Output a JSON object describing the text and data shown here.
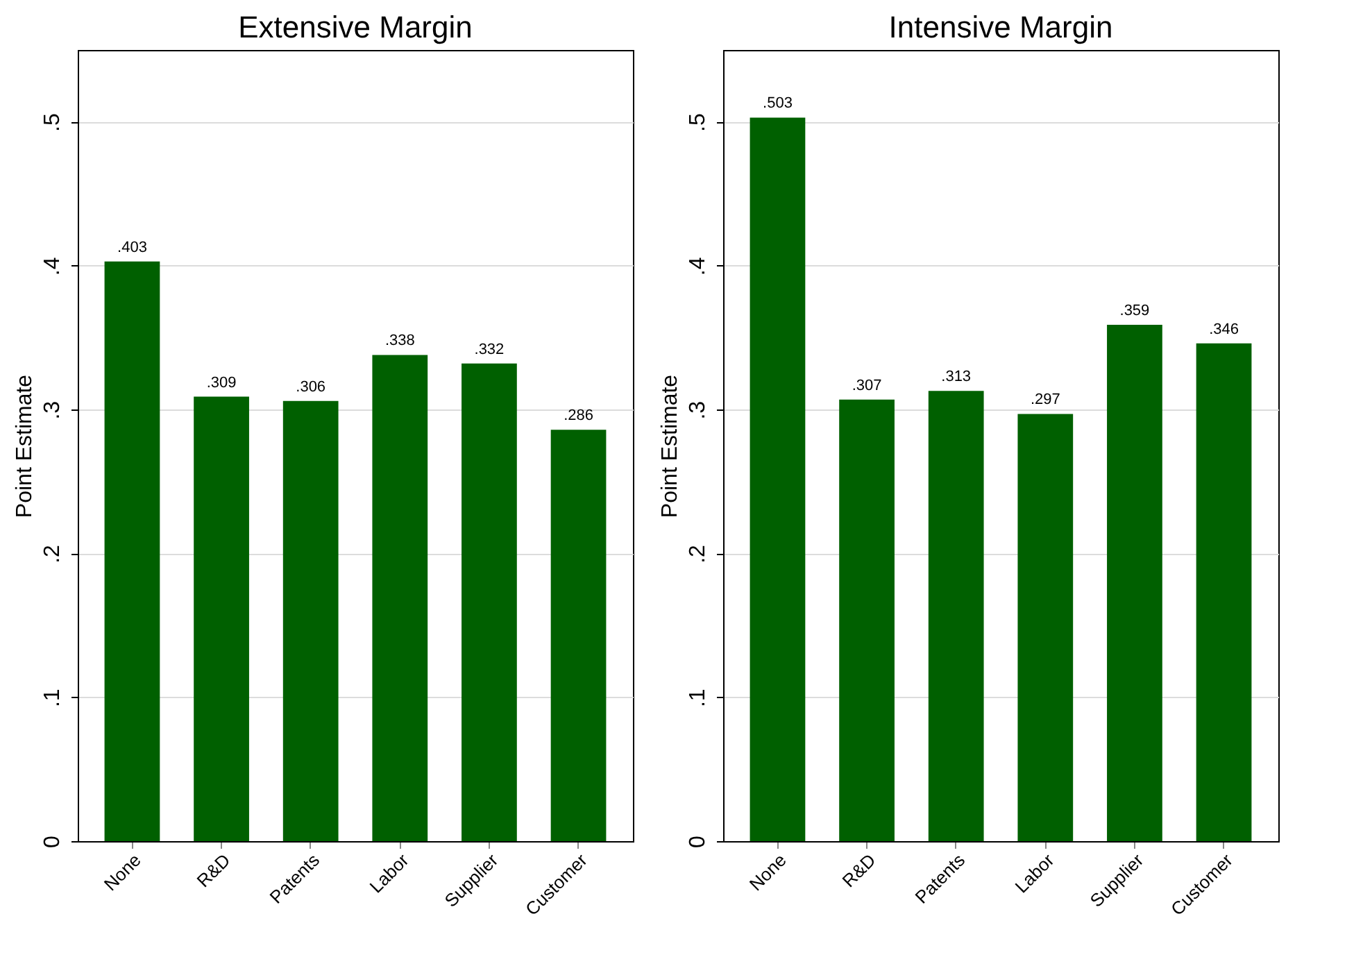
{
  "chart_data": [
    {
      "type": "bar",
      "title": "Extensive Margin",
      "ylabel": "Point Estimate",
      "categories": [
        "None",
        "R&D",
        "Patents",
        "Labor",
        "Supplier",
        "Customer"
      ],
      "values": [
        0.403,
        0.309,
        0.306,
        0.338,
        0.332,
        0.286
      ],
      "value_labels": [
        ".403",
        ".309",
        ".306",
        ".338",
        ".332",
        ".286"
      ],
      "color": "#006000",
      "ylim": [
        0,
        0.55
      ],
      "yticks": [
        0,
        {
          "value": 0.1,
          "label": ".1"
        },
        {
          "value": 0.2,
          "label": ".2"
        },
        {
          "value": 0.3,
          "label": ".3"
        },
        {
          "value": 0.4,
          "label": ".4"
        },
        {
          "value": 0.5,
          "label": ".5"
        }
      ],
      "grid": "y"
    },
    {
      "type": "bar",
      "title": "Intensive Margin",
      "ylabel": "Point Estimate",
      "categories": [
        "None",
        "R&D",
        "Patents",
        "Labor",
        "Supplier",
        "Customer"
      ],
      "values": [
        0.503,
        0.307,
        0.313,
        0.297,
        0.359,
        0.346
      ],
      "value_labels": [
        ".503",
        ".307",
        ".313",
        ".297",
        ".359",
        ".346"
      ],
      "color": "#006000",
      "ylim": [
        0,
        0.55
      ],
      "yticks": [
        0,
        {
          "value": 0.1,
          "label": ".1"
        },
        {
          "value": 0.2,
          "label": ".2"
        },
        {
          "value": 0.3,
          "label": ".3"
        },
        {
          "value": 0.4,
          "label": ".4"
        },
        {
          "value": 0.5,
          "label": ".5"
        }
      ],
      "grid": "y"
    }
  ]
}
